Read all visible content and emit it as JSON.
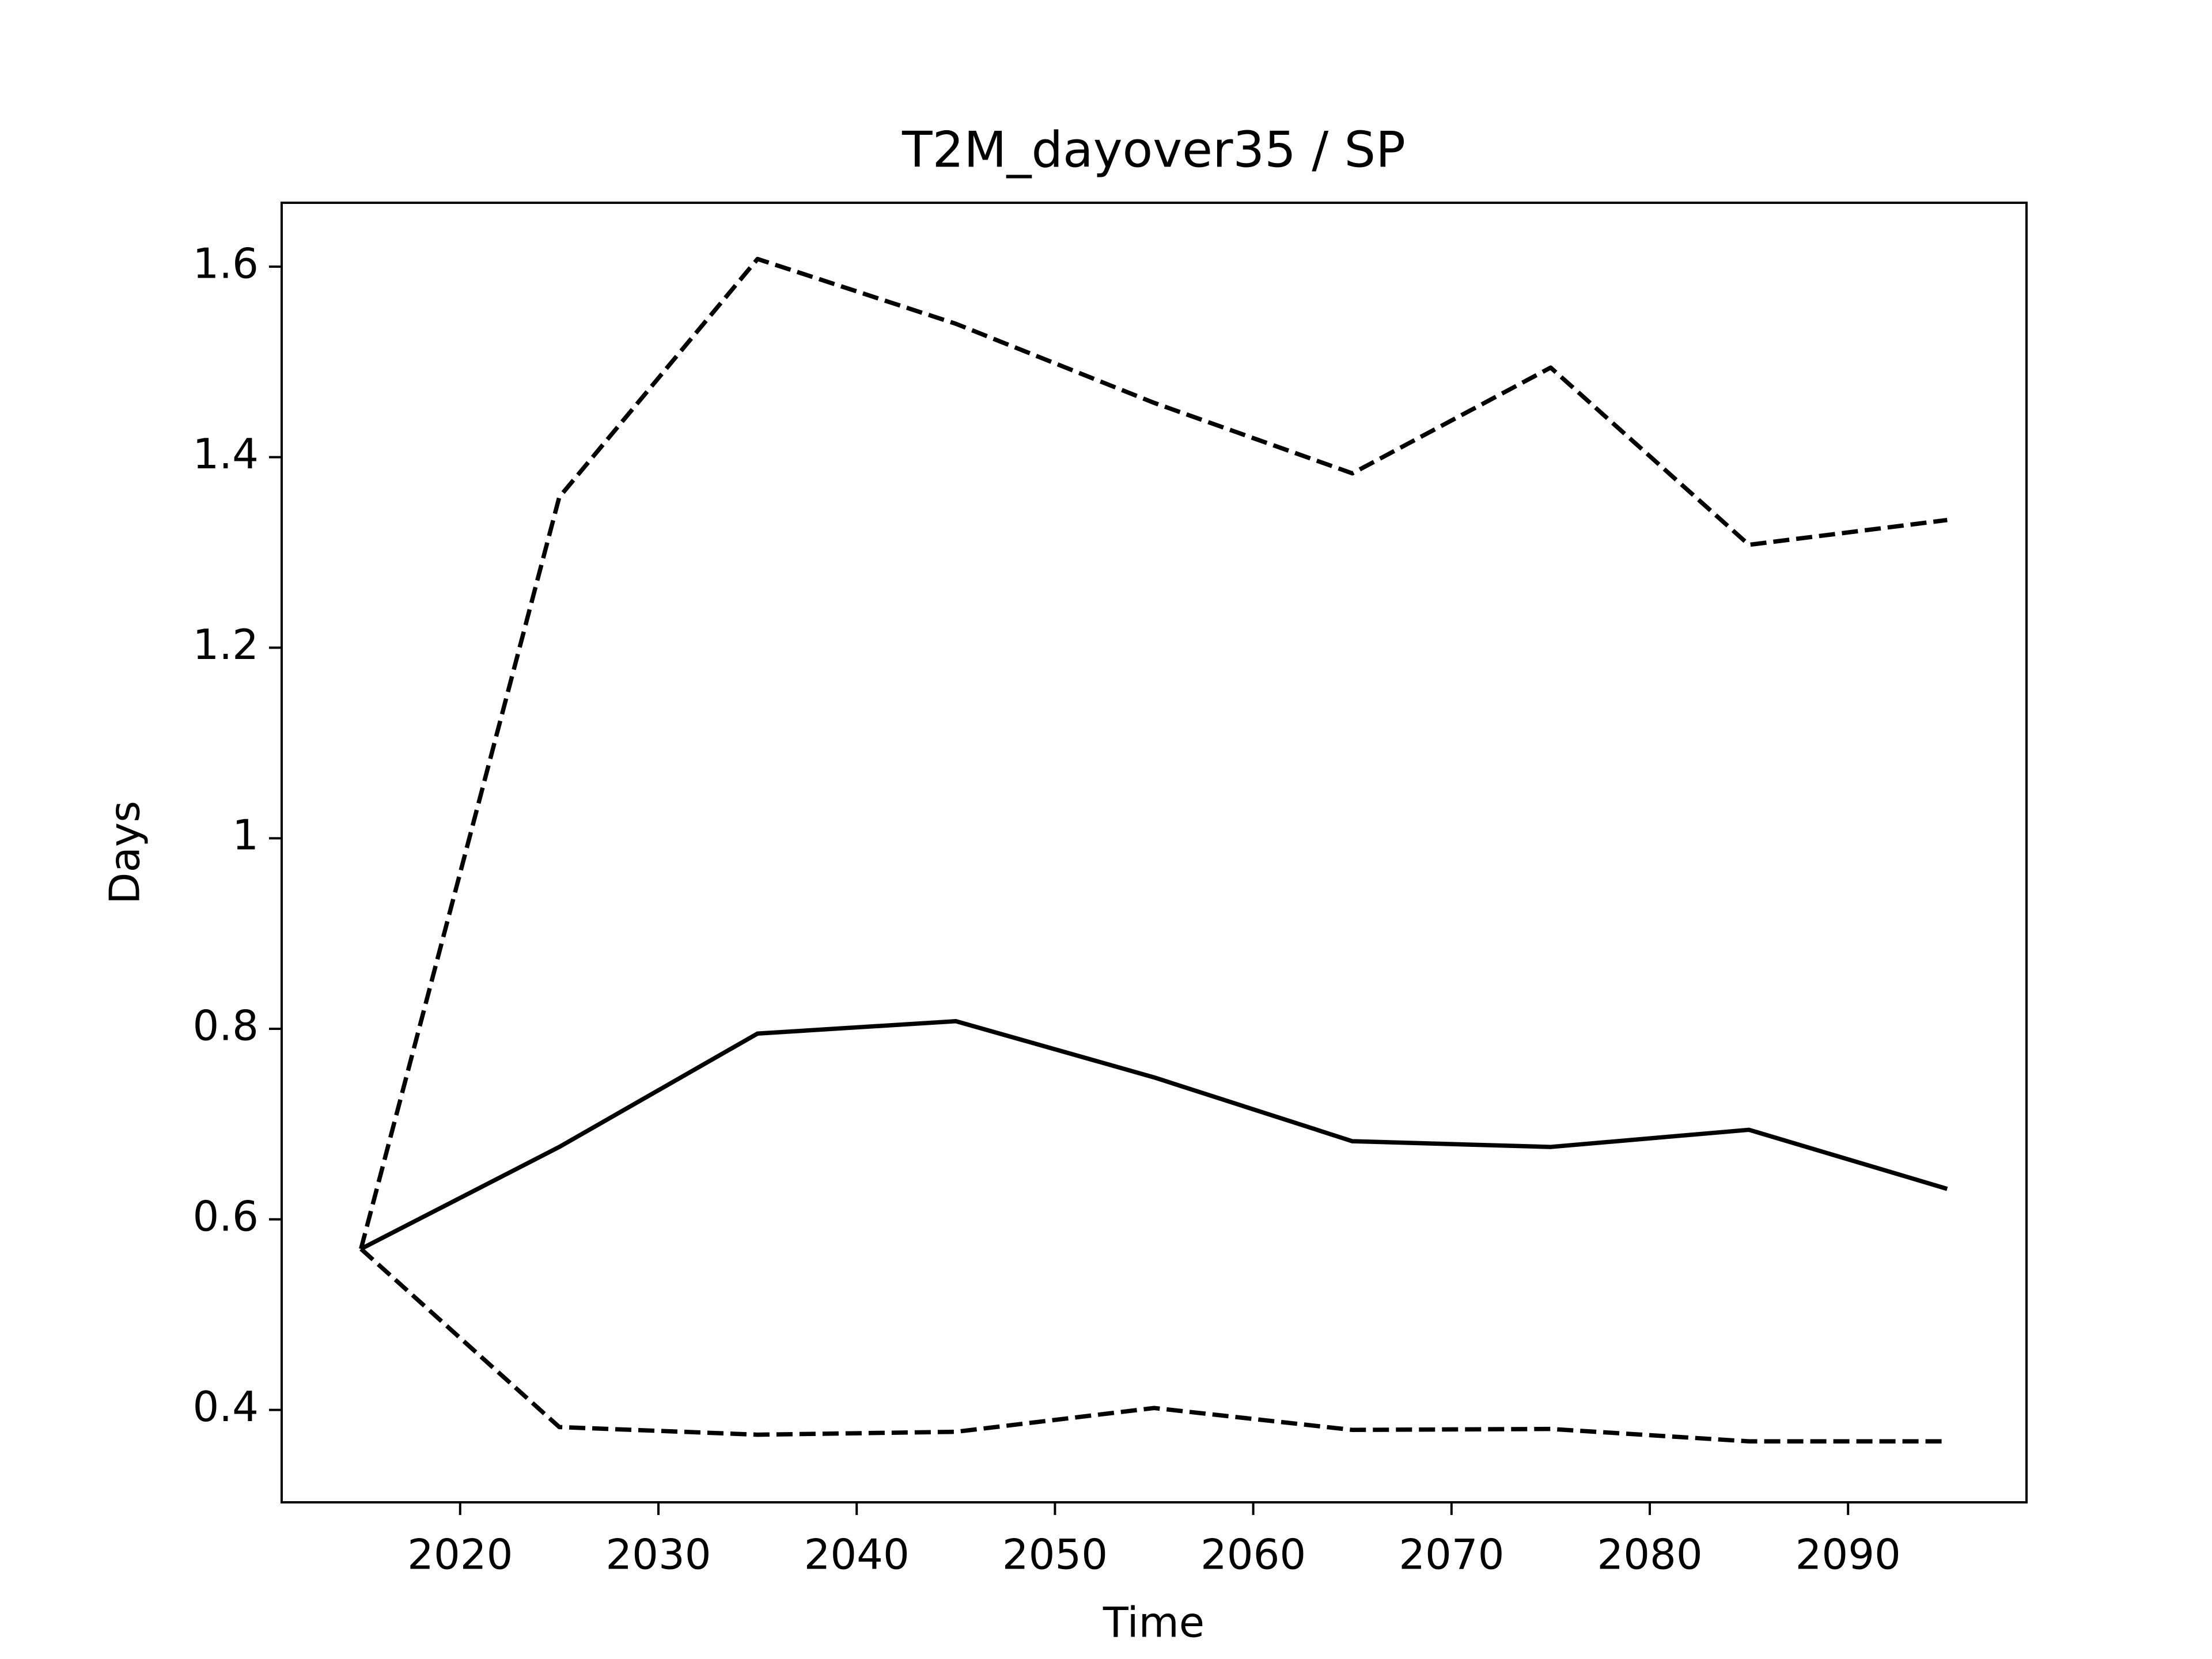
{
  "chart_data": {
    "type": "line",
    "title": "T2M_dayover35 / SP",
    "xlabel": "Time",
    "ylabel": "Days",
    "x": [
      2015,
      2025,
      2035,
      2045,
      2055,
      2065,
      2075,
      2085,
      2095
    ],
    "series": [
      {
        "color": "#000000",
        "linestyle": "solid",
        "values": [
          0.569,
          0.676,
          0.795,
          0.808,
          0.749,
          0.682,
          0.676,
          0.694,
          0.632
        ]
      },
      {
        "color": "#000000",
        "linestyle": "dashed",
        "values": [
          0.569,
          1.358,
          1.608,
          1.54,
          1.457,
          1.383,
          1.494,
          1.308,
          1.334
        ]
      },
      {
        "color": "#000000",
        "linestyle": "dashed",
        "values": [
          0.569,
          0.382,
          0.374,
          0.377,
          0.402,
          0.379,
          0.38,
          0.367,
          0.367
        ]
      }
    ],
    "xlim": [
      2011,
      2099
    ],
    "xticks": [
      2020,
      2030,
      2040,
      2050,
      2060,
      2070,
      2080,
      2090
    ],
    "ylim": [
      0.303,
      1.667
    ],
    "yticks": [
      0.4,
      0.6,
      0.8,
      1.0,
      1.2,
      1.4,
      1.6
    ],
    "grid": false
  }
}
